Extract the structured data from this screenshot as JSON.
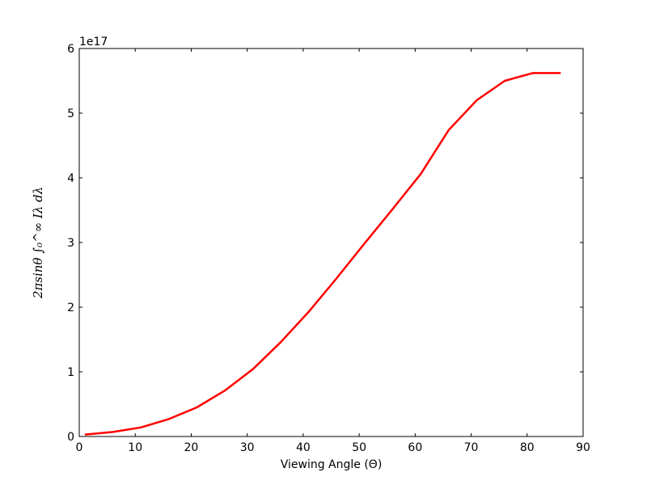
{
  "chart_data": {
    "type": "line",
    "title": "",
    "xlabel": "Viewing Angle (Θ)",
    "ylabel": "2πsinθ ∫₀^∞ Iλ dλ",
    "y_offset_label": "1e17",
    "y_scale": 1e+17,
    "xlim": [
      0,
      90
    ],
    "ylim": [
      0,
      6
    ],
    "xticks": [
      0,
      10,
      20,
      30,
      40,
      50,
      60,
      70,
      80,
      90
    ],
    "yticks": [
      0,
      1,
      2,
      3,
      4,
      5,
      6
    ],
    "grid": false,
    "series": [
      {
        "color": "#ff0000",
        "x": [
          1,
          6,
          11,
          16,
          21,
          26,
          31,
          36,
          41,
          46,
          51,
          56,
          61,
          66,
          71,
          76,
          81,
          86
        ],
        "y": [
          0.03,
          0.07,
          0.14,
          0.27,
          0.45,
          0.71,
          1.04,
          1.46,
          1.93,
          2.45,
          2.99,
          3.52,
          4.06,
          4.74,
          5.2,
          5.5,
          5.62,
          5.62
        ]
      }
    ]
  }
}
